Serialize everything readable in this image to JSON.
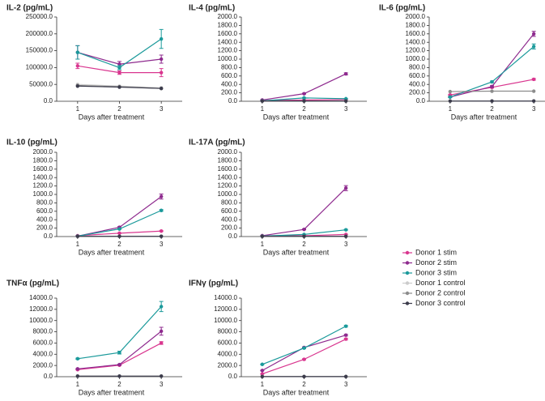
{
  "chart_data": [
    {
      "type": "line",
      "title": "IL-2 (pg/mL)",
      "x_label": "Days after treatment",
      "x": [
        1,
        2,
        3
      ],
      "xlim": [
        0.5,
        3.5
      ],
      "xticks": [
        1,
        2,
        3
      ],
      "ylim": [
        0,
        250000
      ],
      "yticks": [
        {
          "value": 0,
          "label": "0.0"
        },
        {
          "value": 50000,
          "label": "50000.0"
        },
        {
          "value": 100000,
          "label": "100000.0"
        },
        {
          "value": 150000,
          "label": "150000.0"
        },
        {
          "value": 200000,
          "label": "200000.0"
        },
        {
          "value": 250000,
          "label": "250000.0"
        }
      ],
      "series": [
        {
          "name": "Donor 1 stim",
          "color": "#d9368f",
          "values": [
            105000,
            85000,
            85000
          ],
          "errors": [
            8000,
            5000,
            12000
          ]
        },
        {
          "name": "Donor 2 stim",
          "color": "#8e2a8e",
          "values": [
            145000,
            110000,
            125000
          ],
          "errors": [
            20000,
            8000,
            12000
          ]
        },
        {
          "name": "Donor 3 stim",
          "color": "#1b9a9b",
          "values": [
            145000,
            100000,
            185000
          ],
          "errors": [
            20000,
            6000,
            28000
          ]
        },
        {
          "name": "Donor 1 control",
          "color": "#cccccc",
          "values": [
            50000,
            45000,
            40000
          ]
        },
        {
          "name": "Donor 2 control",
          "color": "#8c8c8c",
          "values": [
            47000,
            43000,
            38000
          ]
        },
        {
          "name": "Donor 3 control",
          "color": "#3b3b4b",
          "values": [
            45000,
            42000,
            38000
          ]
        }
      ]
    },
    {
      "type": "line",
      "title": "IL-4 (pg/mL)",
      "x_label": "Days after treatment",
      "x": [
        1,
        2,
        3
      ],
      "xlim": [
        0.5,
        3.5
      ],
      "xticks": [
        1,
        2,
        3
      ],
      "ylim": [
        0,
        2000
      ],
      "yticks": [
        {
          "value": 0,
          "label": "0.0"
        },
        {
          "value": 200,
          "label": "200.0"
        },
        {
          "value": 400,
          "label": "400.0"
        },
        {
          "value": 600,
          "label": "600.0"
        },
        {
          "value": 800,
          "label": "800.0"
        },
        {
          "value": 1000,
          "label": "1000.0"
        },
        {
          "value": 1200,
          "label": "1200.0"
        },
        {
          "value": 1400,
          "label": "1400.0"
        },
        {
          "value": 1600,
          "label": "1600.0"
        },
        {
          "value": 1800,
          "label": "1800.0"
        },
        {
          "value": 2000,
          "label": "2000.0"
        }
      ],
      "series": [
        {
          "name": "Donor 1 stim",
          "color": "#d9368f",
          "values": [
            20,
            30,
            40
          ],
          "errors": [
            5,
            5,
            5
          ]
        },
        {
          "name": "Donor 2 stim",
          "color": "#8e2a8e",
          "values": [
            30,
            180,
            650
          ],
          "errors": [
            5,
            10,
            25
          ]
        },
        {
          "name": "Donor 3 stim",
          "color": "#1b9a9b",
          "values": [
            10,
            80,
            60
          ],
          "errors": [
            3,
            5,
            5
          ]
        },
        {
          "name": "Donor 1 control",
          "color": "#cccccc",
          "values": [
            5,
            5,
            5
          ]
        },
        {
          "name": "Donor 2 control",
          "color": "#8c8c8c",
          "values": [
            5,
            5,
            5
          ]
        },
        {
          "name": "Donor 3 control",
          "color": "#3b3b4b",
          "values": [
            5,
            5,
            5
          ]
        }
      ]
    },
    {
      "type": "line",
      "title": "IL-6 (pg/mL)",
      "x_label": "Days after treatment",
      "x": [
        1,
        2,
        3
      ],
      "xlim": [
        0.5,
        3.5
      ],
      "xticks": [
        1,
        2,
        3
      ],
      "ylim": [
        0,
        2000
      ],
      "yticks": [
        {
          "value": 0,
          "label": "0.0"
        },
        {
          "value": 200,
          "label": "200.0"
        },
        {
          "value": 400,
          "label": "400.0"
        },
        {
          "value": 600,
          "label": "600.0"
        },
        {
          "value": 800,
          "label": "800.0"
        },
        {
          "value": 1000,
          "label": "1000.0"
        },
        {
          "value": 1200,
          "label": "1200.0"
        },
        {
          "value": 1400,
          "label": "1400.0"
        },
        {
          "value": 1600,
          "label": "1600.0"
        },
        {
          "value": 1800,
          "label": "1800.0"
        },
        {
          "value": 2000,
          "label": "2000.0"
        }
      ],
      "series": [
        {
          "name": "Donor 1 stim",
          "color": "#d9368f",
          "values": [
            150,
            330,
            520
          ],
          "errors": [
            10,
            15,
            20
          ]
        },
        {
          "name": "Donor 2 stim",
          "color": "#8e2a8e",
          "values": [
            100,
            350,
            1600
          ],
          "errors": [
            10,
            20,
            60
          ]
        },
        {
          "name": "Donor 3 stim",
          "color": "#1b9a9b",
          "values": [
            100,
            460,
            1300
          ],
          "errors": [
            10,
            20,
            60
          ]
        },
        {
          "name": "Donor 1 control",
          "color": "#cccccc",
          "values": [
            5,
            5,
            5
          ]
        },
        {
          "name": "Donor 2 control",
          "color": "#8c8c8c",
          "values": [
            230,
            240,
            240
          ]
        },
        {
          "name": "Donor 3 control",
          "color": "#3b3b4b",
          "values": [
            5,
            5,
            5
          ]
        }
      ]
    },
    {
      "type": "line",
      "title": "IL-10 (pg/mL)",
      "x_label": "Days after treatment",
      "x": [
        1,
        2,
        3
      ],
      "xlim": [
        0.5,
        3.5
      ],
      "xticks": [
        1,
        2,
        3
      ],
      "ylim": [
        0,
        2000
      ],
      "yticks": [
        {
          "value": 0,
          "label": "0.0"
        },
        {
          "value": 200,
          "label": "200.0"
        },
        {
          "value": 400,
          "label": "400.0"
        },
        {
          "value": 600,
          "label": "600.0"
        },
        {
          "value": 800,
          "label": "800.0"
        },
        {
          "value": 1000,
          "label": "1000.0"
        },
        {
          "value": 1200,
          "label": "1200.0"
        },
        {
          "value": 1400,
          "label": "1400.0"
        },
        {
          "value": 1600,
          "label": "1600.0"
        },
        {
          "value": 1800,
          "label": "1800.0"
        },
        {
          "value": 2000,
          "label": "2000.0"
        }
      ],
      "series": [
        {
          "name": "Donor 1 stim",
          "color": "#d9368f",
          "values": [
            20,
            80,
            130
          ],
          "errors": [
            5,
            5,
            10
          ]
        },
        {
          "name": "Donor 2 stim",
          "color": "#8e2a8e",
          "values": [
            10,
            220,
            950
          ],
          "errors": [
            5,
            15,
            60
          ]
        },
        {
          "name": "Donor 3 stim",
          "color": "#1b9a9b",
          "values": [
            10,
            180,
            620
          ],
          "errors": [
            5,
            10,
            20
          ]
        },
        {
          "name": "Donor 1 control",
          "color": "#cccccc",
          "values": [
            5,
            5,
            5
          ]
        },
        {
          "name": "Donor 2 control",
          "color": "#8c8c8c",
          "values": [
            5,
            5,
            5
          ]
        },
        {
          "name": "Donor 3 control",
          "color": "#3b3b4b",
          "values": [
            5,
            5,
            5
          ]
        }
      ]
    },
    {
      "type": "line",
      "title": "IL-17A (pg/mL)",
      "x_label": "Days after treatment",
      "x": [
        1,
        2,
        3
      ],
      "xlim": [
        0.5,
        3.5
      ],
      "xticks": [
        1,
        2,
        3
      ],
      "ylim": [
        0,
        2000
      ],
      "yticks": [
        {
          "value": 0,
          "label": "0.0"
        },
        {
          "value": 200,
          "label": "200.0"
        },
        {
          "value": 400,
          "label": "400.0"
        },
        {
          "value": 600,
          "label": "600.0"
        },
        {
          "value": 800,
          "label": "800.0"
        },
        {
          "value": 1000,
          "label": "1000.0"
        },
        {
          "value": 1200,
          "label": "1200.0"
        },
        {
          "value": 1400,
          "label": "1400.0"
        },
        {
          "value": 1600,
          "label": "1600.0"
        },
        {
          "value": 1800,
          "label": "1800.0"
        },
        {
          "value": 2000,
          "label": "2000.0"
        }
      ],
      "series": [
        {
          "name": "Donor 1 stim",
          "color": "#d9368f",
          "values": [
            20,
            20,
            50
          ],
          "errors": [
            5,
            5,
            5
          ]
        },
        {
          "name": "Donor 2 stim",
          "color": "#8e2a8e",
          "values": [
            20,
            170,
            1150
          ],
          "errors": [
            5,
            10,
            60
          ]
        },
        {
          "name": "Donor 3 stim",
          "color": "#1b9a9b",
          "values": [
            10,
            50,
            160
          ],
          "errors": [
            3,
            5,
            10
          ]
        },
        {
          "name": "Donor 1 control",
          "color": "#cccccc",
          "values": [
            5,
            5,
            5
          ]
        },
        {
          "name": "Donor 2 control",
          "color": "#8c8c8c",
          "values": [
            5,
            5,
            5
          ]
        },
        {
          "name": "Donor 3 control",
          "color": "#3b3b4b",
          "values": [
            5,
            5,
            5
          ]
        }
      ]
    },
    {
      "type": "line",
      "title": "TNFα (pg/mL)",
      "x_label": "Days after treatment",
      "x": [
        1,
        2,
        3
      ],
      "xlim": [
        0.5,
        3.5
      ],
      "xticks": [
        1,
        2,
        3
      ],
      "ylim": [
        0,
        14000
      ],
      "yticks": [
        {
          "value": 0,
          "label": "0.0"
        },
        {
          "value": 2000,
          "label": "2000.0"
        },
        {
          "value": 4000,
          "label": "4000.0"
        },
        {
          "value": 6000,
          "label": "6000.0"
        },
        {
          "value": 8000,
          "label": "8000.0"
        },
        {
          "value": 10000,
          "label": "10000.0"
        },
        {
          "value": 12000,
          "label": "12000.0"
        },
        {
          "value": 14000,
          "label": "14000.0"
        }
      ],
      "series": [
        {
          "name": "Donor 1 stim",
          "color": "#d9368f",
          "values": [
            1250,
            2050,
            6000
          ],
          "errors": [
            50,
            80,
            250
          ]
        },
        {
          "name": "Donor 2 stim",
          "color": "#8e2a8e",
          "values": [
            1400,
            2150,
            8100
          ],
          "errors": [
            50,
            80,
            700
          ]
        },
        {
          "name": "Donor 3 stim",
          "color": "#1b9a9b",
          "values": [
            3200,
            4300,
            12500
          ],
          "errors": [
            100,
            250,
            900
          ]
        },
        {
          "name": "Donor 1 control",
          "color": "#cccccc",
          "values": [
            100,
            100,
            100
          ]
        },
        {
          "name": "Donor 2 control",
          "color": "#8c8c8c",
          "values": [
            100,
            100,
            100
          ]
        },
        {
          "name": "Donor 3 control",
          "color": "#3b3b4b",
          "values": [
            100,
            100,
            100
          ]
        }
      ]
    },
    {
      "type": "line",
      "title": "IFNγ (pg/mL)",
      "x_label": "Days after treatment",
      "x": [
        1,
        2,
        3
      ],
      "xlim": [
        0.5,
        3.5
      ],
      "xticks": [
        1,
        2,
        3
      ],
      "ylim": [
        0,
        14000
      ],
      "yticks": [
        {
          "value": 0,
          "label": "0.0"
        },
        {
          "value": 2000,
          "label": "2000.0"
        },
        {
          "value": 4000,
          "label": "4000.0"
        },
        {
          "value": 6000,
          "label": "6000.0"
        },
        {
          "value": 8000,
          "label": "8000.0"
        },
        {
          "value": 10000,
          "label": "10000.0"
        },
        {
          "value": 12000,
          "label": "12000.0"
        },
        {
          "value": 14000,
          "label": "14000.0"
        }
      ],
      "series": [
        {
          "name": "Donor 1 stim",
          "color": "#d9368f",
          "values": [
            500,
            3100,
            6700
          ],
          "errors": [
            30,
            100,
            150
          ]
        },
        {
          "name": "Donor 2 stim",
          "color": "#8e2a8e",
          "values": [
            1100,
            5200,
            7400
          ],
          "errors": [
            50,
            100,
            150
          ]
        },
        {
          "name": "Donor 3 stim",
          "color": "#1b9a9b",
          "values": [
            2200,
            5100,
            9000
          ],
          "errors": [
            50,
            100,
            150
          ]
        },
        {
          "name": "Donor 1 control",
          "color": "#cccccc",
          "values": [
            20,
            20,
            20
          ]
        },
        {
          "name": "Donor 2 control",
          "color": "#8c8c8c",
          "values": [
            20,
            20,
            20
          ]
        },
        {
          "name": "Donor 3 control",
          "color": "#3b3b4b",
          "values": [
            20,
            20,
            20
          ]
        }
      ]
    }
  ]
}
